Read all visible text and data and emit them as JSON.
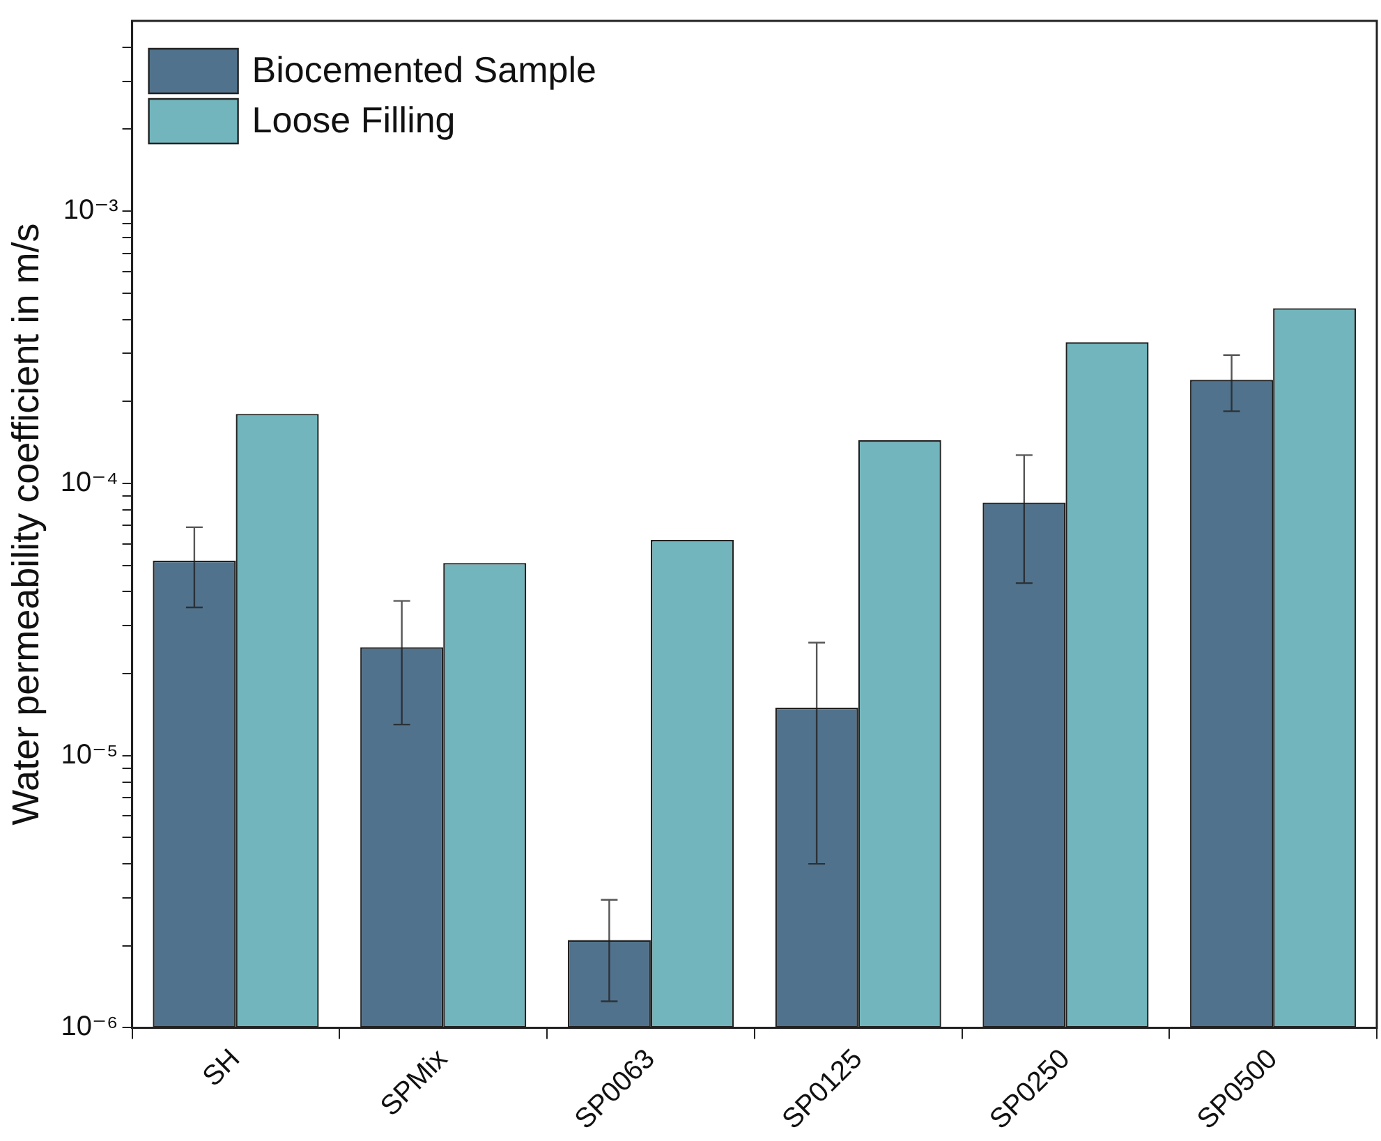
{
  "chart_data": {
    "type": "bar",
    "ylabel": "Water permeability coefficient in m/s",
    "categories": [
      "SH",
      "SPMix",
      "SP0063",
      "SP0125",
      "SP0250",
      "SP0500"
    ],
    "series": [
      {
        "name": "Biocemented Sample",
        "color": "#51728c",
        "values": [
          5.2e-05,
          2.5e-05,
          2.1e-06,
          1.5e-05,
          8.5e-05,
          0.00024
        ],
        "errors": [
          1.7e-05,
          1.2e-05,
          8.5e-07,
          1.1e-05,
          4.2e-05,
          5.6e-05
        ]
      },
      {
        "name": "Loose Filling",
        "color": "#72b5bc",
        "values": [
          0.00018,
          5.1e-05,
          6.2e-05,
          0.000144,
          0.00033,
          0.00044
        ]
      }
    ],
    "log": "y",
    "ylim": [
      1e-06,
      0.005
    ],
    "yticks": [
      {
        "value": 1e-06,
        "label": "10⁻⁶"
      },
      {
        "value": 2e-06,
        "label": null
      },
      {
        "value": 3e-06,
        "label": null
      },
      {
        "value": 4e-06,
        "label": null
      },
      {
        "value": 5e-06,
        "label": null
      },
      {
        "value": 6e-06,
        "label": null
      },
      {
        "value": 7e-06,
        "label": null
      },
      {
        "value": 8e-06,
        "label": null
      },
      {
        "value": 9e-06,
        "label": null
      },
      {
        "value": 1e-05,
        "label": "10⁻⁵"
      },
      {
        "value": 2e-05,
        "label": null
      },
      {
        "value": 3e-05,
        "label": null
      },
      {
        "value": 4e-05,
        "label": null
      },
      {
        "value": 5e-05,
        "label": null
      },
      {
        "value": 6e-05,
        "label": null
      },
      {
        "value": 7e-05,
        "label": null
      },
      {
        "value": 8e-05,
        "label": null
      },
      {
        "value": 9e-05,
        "label": null
      },
      {
        "value": 0.0001,
        "label": "10⁻⁴"
      },
      {
        "value": 0.0002,
        "label": null
      },
      {
        "value": 0.0003,
        "label": null
      },
      {
        "value": 0.0004,
        "label": null
      },
      {
        "value": 0.0005,
        "label": null
      },
      {
        "value": 0.0006,
        "label": null
      },
      {
        "value": 0.0007,
        "label": null
      },
      {
        "value": 0.0008,
        "label": null
      },
      {
        "value": 0.0009,
        "label": null
      },
      {
        "value": 0.001,
        "label": "10⁻³"
      },
      {
        "value": 0.002,
        "label": null
      },
      {
        "value": 0.003,
        "label": null
      },
      {
        "value": 0.004,
        "label": null
      }
    ],
    "grid": false,
    "legend": "top left"
  }
}
